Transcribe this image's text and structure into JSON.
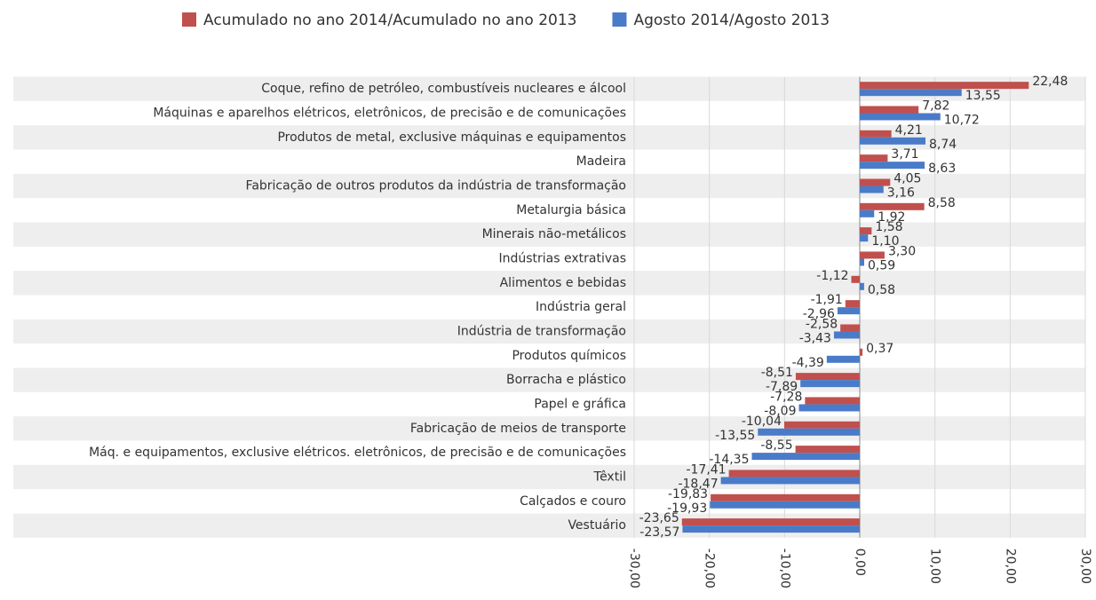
{
  "chart_data": {
    "type": "hbar",
    "categories": [
      "Coque, refino de petróleo, combustíveis nucleares e álcool",
      "Máquinas e aparelhos elétricos, eletrônicos, de precisão e de comunicações",
      "Produtos de metal, exclusive máquinas e equipamentos",
      "Madeira",
      "Fabricação de outros produtos da indústria de transformação",
      "Metalurgia básica",
      "Minerais não-metálicos",
      "Indústrias extrativas",
      "Alimentos e bebidas",
      "Indústria geral",
      "Indústria de transformação",
      "Produtos químicos",
      "Borracha e plástico",
      "Papel e gráfica",
      "Fabricação de meios de transporte",
      "Máq. e equipamentos, exclusive elétricos. eletrônicos, de precisão e de comunicações",
      "Têxtil",
      "Calçados e couro",
      "Vestuário"
    ],
    "series": [
      {
        "name": "Acumulado no ano 2014/Acumulado no ano 2013",
        "color": "#c0504d",
        "values": [
          22.48,
          7.82,
          4.21,
          3.71,
          4.05,
          8.58,
          1.58,
          3.3,
          -1.12,
          -1.91,
          -2.58,
          0.37,
          -8.51,
          -7.28,
          -10.04,
          -8.55,
          -17.41,
          -19.83,
          -23.65
        ],
        "value_labels": [
          "22,48",
          "7,82",
          "4,21",
          "3,71",
          "4,05",
          "8,58",
          "1,58",
          "3,30",
          "-1,12",
          "-1,91",
          "-2,58",
          "0,37",
          "-8,51",
          "-7,28",
          "-10,04",
          "-8,55",
          "-17,41",
          "-19,83",
          "-23,65"
        ]
      },
      {
        "name": "Agosto 2014/Agosto 2013",
        "color": "#4a7bc8",
        "values": [
          13.55,
          10.72,
          8.74,
          8.63,
          3.16,
          1.92,
          1.1,
          0.59,
          0.58,
          -2.96,
          -3.43,
          -4.39,
          -7.89,
          -8.09,
          -13.55,
          -14.35,
          -18.47,
          -19.93,
          -23.57
        ],
        "value_labels": [
          "13,55",
          "10,72",
          "8,74",
          "8,63",
          "3,16",
          "1,92",
          "1,10",
          "0,59",
          "0,58",
          "-2,96",
          "-3,43",
          "-4,39",
          "-7,89",
          "-8,09",
          "-13,55",
          "-14,35",
          "-18,47",
          "-19,93",
          "-23,57"
        ]
      }
    ],
    "xlim": [
      -30,
      30
    ],
    "xticks": [
      {
        "value": -30,
        "label": "-30,00"
      },
      {
        "value": -20,
        "label": "-20,00"
      },
      {
        "value": -10,
        "label": "-10,00"
      },
      {
        "value": 0,
        "label": "0,00"
      },
      {
        "value": 10,
        "label": "10,00"
      },
      {
        "value": 20,
        "label": "20,00"
      },
      {
        "value": 30,
        "label": "30,00"
      }
    ],
    "grid": true
  }
}
